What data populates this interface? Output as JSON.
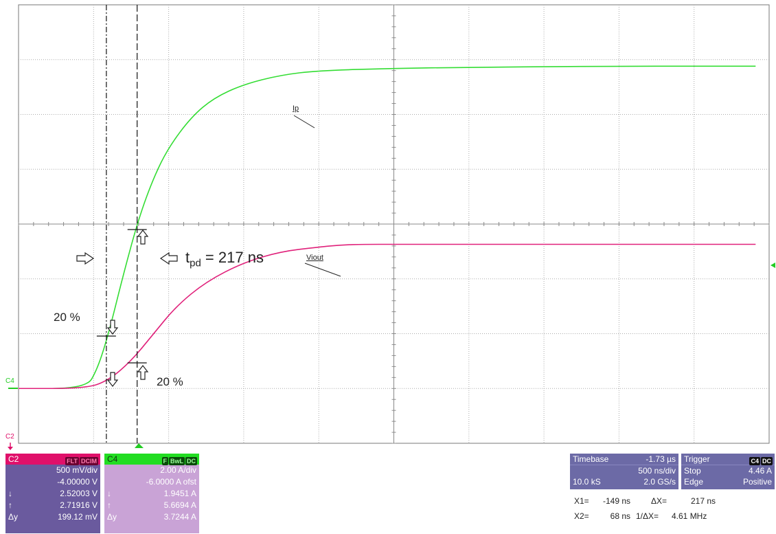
{
  "traces": {
    "ip_label": "Ip",
    "viout_label": "Viout"
  },
  "annotations": {
    "tpd": "t",
    "tpd_sub": "pd",
    "tpd_value": " = 217 ns",
    "pct_upper": "20 %",
    "pct_lower": "20 %"
  },
  "markers": {
    "c4_left": "C4",
    "c2_left": "C2"
  },
  "colors": {
    "c2": "#e0106a",
    "c4": "#22dd22",
    "ip_trace": "#33dd33",
    "viout_trace": "#e0207a",
    "panel_c2_bg": "#6a5a9e",
    "panel_c4_bg": "#c9a3d6",
    "timebase_bg": "#6c6aa6"
  },
  "channel_c2": {
    "name": "C2",
    "badges": [
      "FLT",
      "DCIM"
    ],
    "scale": "500 mV/div",
    "offset": "-4.00000 V",
    "cursor1_label": "↓",
    "cursor1": "2.52003 V",
    "cursor2_label": "↑",
    "cursor2": "2.71916 V",
    "delta_label": "Δy",
    "delta": "199.12 mV"
  },
  "channel_c4": {
    "name": "C4",
    "badges": [
      "F",
      "BwL",
      "DC"
    ],
    "scale": "2.00 A/div",
    "offset": "-6.0000 A ofst",
    "cursor1_label": "↓",
    "cursor1": "1.9451 A",
    "cursor2_label": "↑",
    "cursor2": "5.6694 A",
    "delta_label": "Δy",
    "delta": "3.7244 A"
  },
  "timebase": {
    "label": "Timebase",
    "delay": "-1.73 µs",
    "per_div": "500 ns/div",
    "samples": "10.0 kS",
    "rate": "2.0 GS/s"
  },
  "trigger": {
    "label": "Trigger",
    "badges": [
      "C4",
      "DC"
    ],
    "mode": "Stop",
    "level": "4.46 A",
    "type": "Edge",
    "slope": "Positive"
  },
  "measurements": {
    "x1_label": "X1=",
    "x1": "-149 ns",
    "dx_label": "ΔX=",
    "dx": "217 ns",
    "x2_label": "X2=",
    "x2": "68 ns",
    "inv_dx_label": "1/ΔX=",
    "inv_dx": "4.61 MHz"
  },
  "chart_data": {
    "type": "line",
    "x_divisions": 10,
    "y_divisions": 8,
    "x_per_div": "500 ns/div",
    "series": [
      {
        "name": "Ip",
        "channel": "C4",
        "y_unit": "div",
        "x_div": [
          0.0,
          0.9,
          1.05,
          1.2,
          1.4,
          1.6,
          1.8,
          2.0,
          2.3,
          2.6,
          3.0,
          3.5,
          4.0,
          5.0,
          6.0,
          7.0,
          8.0,
          9.0,
          9.82
        ],
        "y_div": [
          0.0,
          0.0,
          0.35,
          1.0,
          2.1,
          3.1,
          3.85,
          4.4,
          4.95,
          5.3,
          5.55,
          5.72,
          5.8,
          5.84,
          5.86,
          5.87,
          5.88,
          5.88,
          5.88
        ]
      },
      {
        "name": "Viout",
        "channel": "C2",
        "y_unit": "div",
        "x_div": [
          0.0,
          0.9,
          1.2,
          1.5,
          1.8,
          2.1,
          2.5,
          3.0,
          3.5,
          4.0,
          4.3,
          4.6,
          5.0,
          6.0,
          7.0,
          8.0,
          9.0,
          9.82
        ],
        "y_div": [
          0.0,
          0.0,
          0.15,
          0.5,
          1.0,
          1.5,
          1.95,
          2.3,
          2.5,
          2.58,
          2.62,
          2.63,
          2.63,
          2.63,
          2.63,
          2.63,
          2.63,
          2.63
        ]
      }
    ],
    "cursors_x_div": [
      1.17,
      1.58
    ]
  }
}
